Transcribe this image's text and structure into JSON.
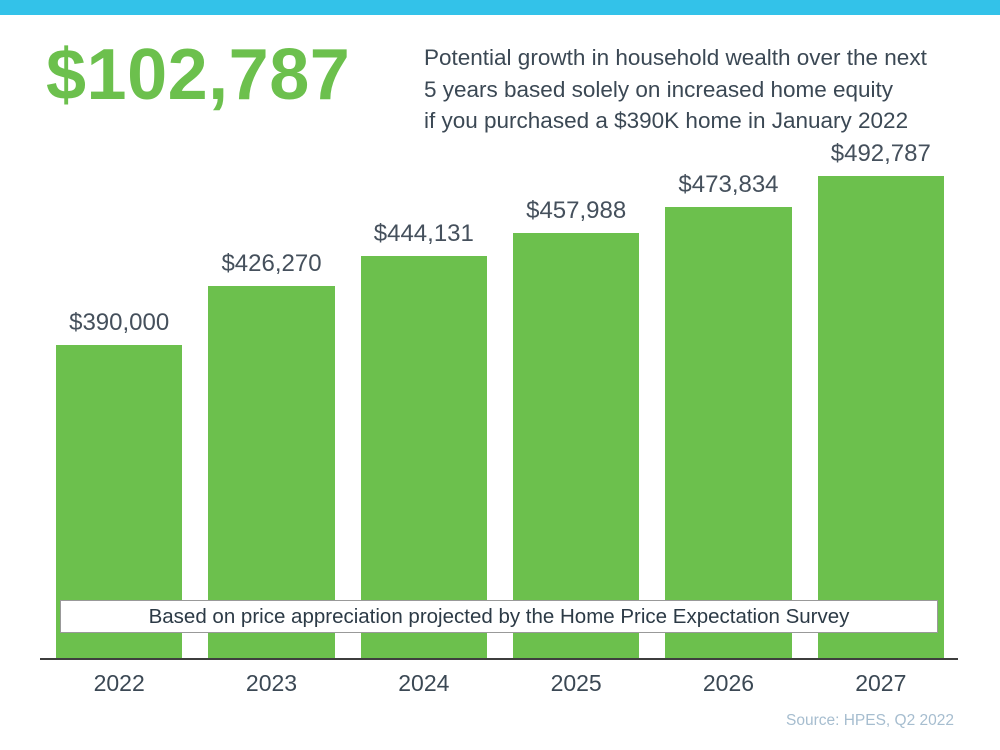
{
  "theme": {
    "top_bar_color": "#33c2e9",
    "headline_color": "#6cc04d",
    "bar_color": "#6cc04d",
    "text_color": "#3b4854",
    "value_label_color": "#45505c",
    "banner_border_color": "#999999",
    "banner_text_color": "#2c3a46",
    "axis_color": "#3e3e3e",
    "source_color": "#a6bdcf"
  },
  "header": {
    "headline_amount": "$102,787",
    "description_lines": [
      "Potential growth in household wealth over the next",
      "5 years based solely on increased home equity",
      "if you purchased a $390K home in January 2022"
    ]
  },
  "chart_data": {
    "type": "bar",
    "categories": [
      "2022",
      "2023",
      "2024",
      "2025",
      "2026",
      "2027"
    ],
    "values": [
      390000,
      426270,
      444131,
      457988,
      473834,
      492787
    ],
    "value_labels": [
      "$390,000",
      "$426,270",
      "$444,131",
      "$457,988",
      "$473,834",
      "$492,787"
    ],
    "title": "",
    "xlabel": "",
    "ylabel": "",
    "ylim": [
      200000,
      500000
    ],
    "grid": false,
    "legend": false,
    "bar_color": "#6cc04d",
    "annotation": "Based on price appreciation projected by the Home Price Expectation Survey"
  },
  "banner": {
    "text": "Based on price appreciation projected by the Home Price Expectation Survey"
  },
  "footer": {
    "source": "Source: HPES, Q2 2022"
  }
}
